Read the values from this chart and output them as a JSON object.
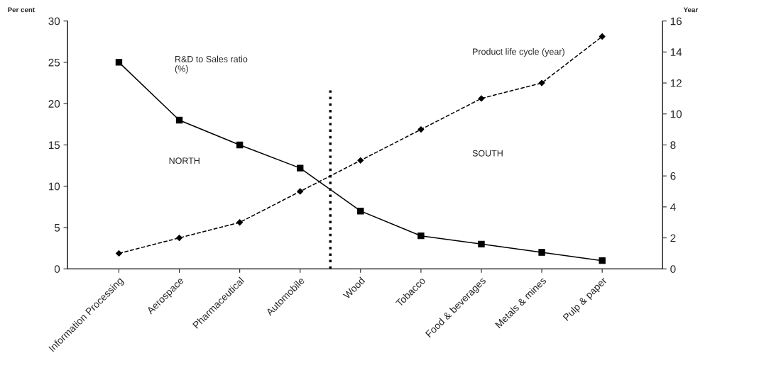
{
  "chart_data": {
    "type": "line",
    "categories": [
      "Information Processing",
      "Aerospace",
      "Pharmaceutical",
      "Automobile",
      "Wood",
      "Tobacco",
      "Food & beverages",
      "Metals & mines",
      "Pulp & paper"
    ],
    "series": [
      {
        "color": "#000000",
        "marker": "square",
        "line_style": "solid",
        "values": [
          25,
          18,
          15,
          12.2,
          7,
          4,
          3,
          2,
          1
        ]
      },
      {
        "color": "#000000",
        "marker": "diamond",
        "line_style": "dashed",
        "axis": "y2",
        "values": [
          1,
          2,
          3,
          5,
          7,
          9,
          11,
          12,
          15
        ]
      }
    ],
    "ylabel": "Per cent",
    "y2label": "Year",
    "ylim": [
      0,
      30
    ],
    "yticks": [
      0,
      5,
      10,
      15,
      20,
      25,
      30
    ],
    "y2lim": [
      0,
      16
    ],
    "y2ticks": [
      0,
      2,
      4,
      6,
      8,
      10,
      12,
      14,
      16
    ],
    "annotations": [
      "R&D to Sales ratio\n(%)",
      "Product life cycle (year)",
      "NORTH",
      "SOUTH"
    ],
    "grid": false,
    "legend": false
  }
}
